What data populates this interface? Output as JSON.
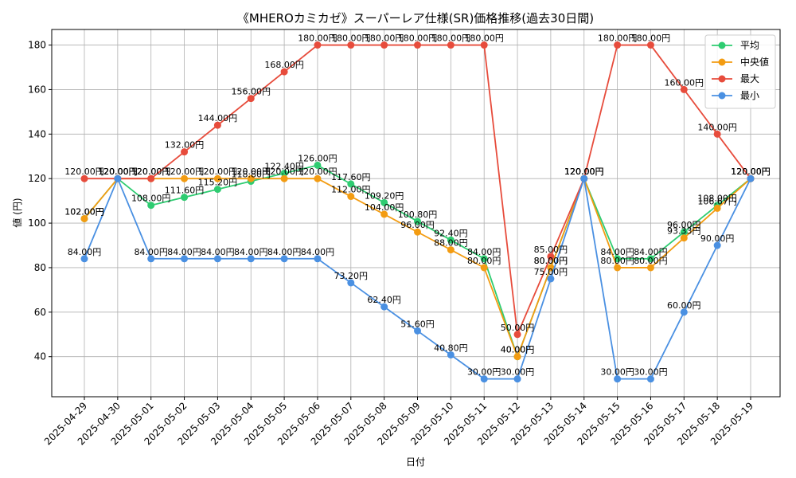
{
  "chart_data": {
    "type": "line",
    "title": "《MHEROカミカゼ》スーパーレア仕様(SR)価格推移(過去30日間)",
    "xlabel": "日付",
    "ylabel": "値 (円)",
    "x": [
      "2025-04-29",
      "2025-04-30",
      "2025-05-01",
      "2025-05-02",
      "2025-05-03",
      "2025-05-04",
      "2025-05-05",
      "2025-05-06",
      "2025-05-07",
      "2025-05-08",
      "2025-05-09",
      "2025-05-10",
      "2025-05-11",
      "2025-05-12",
      "2025-05-13",
      "2025-05-14",
      "2025-05-15",
      "2025-05-16",
      "2025-05-17",
      "2025-05-18",
      "2025-05-19"
    ],
    "ylim": [
      22,
      187
    ],
    "yticks": [
      40,
      60,
      80,
      100,
      120,
      140,
      160,
      180
    ],
    "grid": true,
    "legend_position": "top-right",
    "label_suffix": "円",
    "series": [
      {
        "name": "平均",
        "color": "#2ecc71",
        "values": [
          102,
          120,
          108,
          111.6,
          115.2,
          118.8,
          122.4,
          126,
          117.6,
          109.2,
          100.8,
          92.4,
          84,
          40,
          80,
          120,
          84,
          84,
          96,
          108,
          120
        ]
      },
      {
        "name": "中央値",
        "color": "#f39c12",
        "values": [
          102,
          120,
          120,
          120,
          120,
          120,
          120,
          120,
          112,
          104,
          96,
          88,
          80,
          40,
          80,
          120,
          80,
          80,
          93.33,
          106.67,
          120
        ]
      },
      {
        "name": "最大",
        "color": "#e74c3c",
        "values": [
          120,
          120,
          120,
          132,
          144,
          156,
          168,
          180,
          180,
          180,
          180,
          180,
          180,
          50,
          85,
          120,
          180,
          180,
          160,
          140,
          120
        ]
      },
      {
        "name": "最小",
        "color": "#4a90e2",
        "values": [
          84,
          120,
          84,
          84,
          84,
          84,
          84,
          84,
          73.2,
          62.4,
          51.6,
          40.8,
          30,
          30,
          75,
          120,
          30,
          30,
          60,
          90,
          120
        ]
      }
    ]
  }
}
